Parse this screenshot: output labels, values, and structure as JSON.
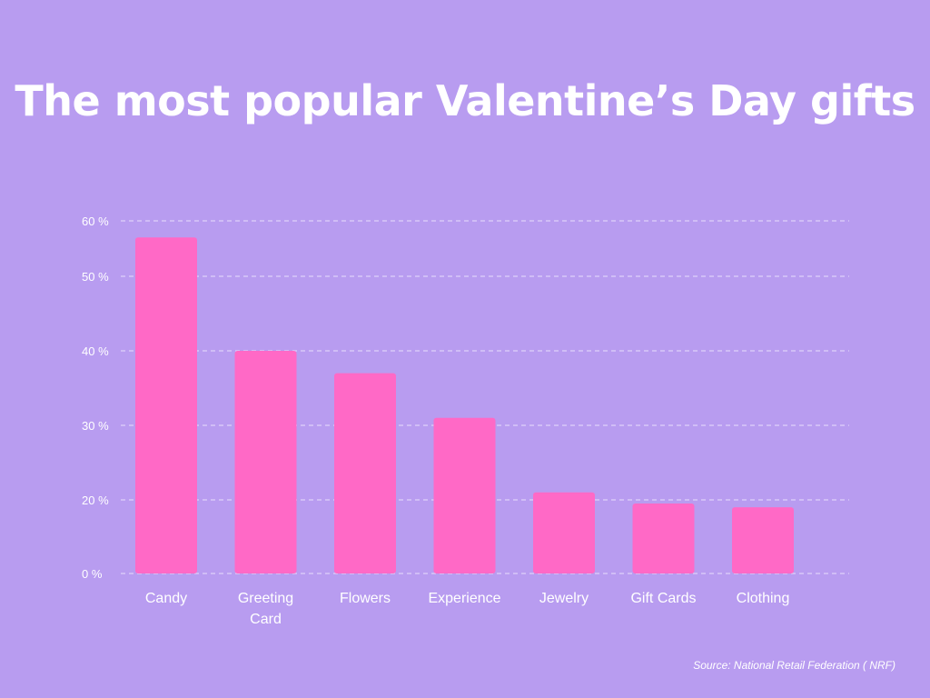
{
  "chart_data": {
    "type": "bar",
    "title": "The most popular Valentine’s Day gifts",
    "categories": [
      "Candy",
      "Greeting\nCard",
      "Flowers",
      "Experience",
      "Jewelry",
      "Gift Cards",
      "Clothing"
    ],
    "values": [
      57,
      40,
      37,
      31,
      21,
      19,
      18
    ],
    "y_ticks": [
      {
        "label": "0 %",
        "value": 0
      },
      {
        "label": "20 %",
        "value": 20
      },
      {
        "label": "30 %",
        "value": 30
      },
      {
        "label": "40 %",
        "value": 40
      },
      {
        "label": "50 %",
        "value": 50
      },
      {
        "label": "60 %",
        "value": 60
      }
    ],
    "ylim": [
      0,
      60
    ],
    "grid": true,
    "bar_color": "#ff69c6",
    "grid_color": "#d8c8f7",
    "source": "Source: National Retail Federation ( NRF)"
  }
}
